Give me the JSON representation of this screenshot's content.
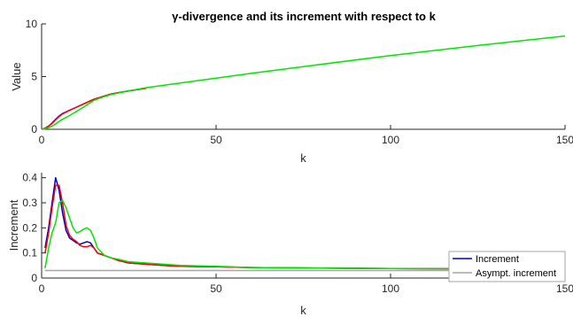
{
  "chart_data": [
    {
      "type": "line",
      "title": "γ-divergence and its increment with respect to k",
      "xlabel": "k",
      "ylabel": "Value",
      "xlim": [
        0,
        150
      ],
      "ylim": [
        0,
        10
      ],
      "xticks": [
        "0",
        "50",
        "100",
        "150"
      ],
      "yticks": [
        "0",
        "5",
        "10"
      ],
      "grid": false,
      "series": [
        {
          "color": "#0000cc",
          "x": [
            0,
            1,
            2,
            3,
            4,
            5,
            6,
            8,
            10,
            12,
            15,
            18,
            20,
            25,
            30
          ],
          "y": [
            0,
            0.1,
            0.3,
            0.6,
            0.95,
            1.25,
            1.5,
            1.8,
            2.1,
            2.4,
            2.85,
            3.15,
            3.35,
            3.65,
            3.9
          ]
        },
        {
          "color": "#ff0000",
          "x": [
            0,
            1,
            2,
            3,
            4,
            5,
            6,
            8,
            10,
            12,
            15,
            18,
            20,
            25,
            30
          ],
          "y": [
            0,
            0.1,
            0.3,
            0.55,
            0.9,
            1.2,
            1.45,
            1.8,
            2.1,
            2.4,
            2.85,
            3.15,
            3.35,
            3.65,
            3.9
          ]
        },
        {
          "color": "#00e600",
          "x": [
            0,
            1,
            2,
            3,
            4,
            5,
            6,
            8,
            10,
            12,
            15,
            18,
            20,
            25,
            30,
            40,
            50,
            60,
            75,
            100,
            125,
            150
          ],
          "y": [
            0,
            0.05,
            0.15,
            0.3,
            0.5,
            0.75,
            0.95,
            1.3,
            1.7,
            2.1,
            2.75,
            3.1,
            3.3,
            3.65,
            3.95,
            4.4,
            4.85,
            5.3,
            5.95,
            7.0,
            7.95,
            8.85
          ]
        }
      ]
    },
    {
      "type": "line",
      "title": "",
      "xlabel": "k",
      "ylabel": "Increment",
      "xlim": [
        0,
        150
      ],
      "ylim": [
        0,
        0.42
      ],
      "xticks": [
        "0",
        "50",
        "100",
        "150"
      ],
      "yticks": [
        "0",
        "0.1",
        "0.2",
        "0.3",
        "0.4"
      ],
      "grid": false,
      "legend": {
        "position": "bottom-right",
        "entries": [
          "Increment",
          "Asympt. increment"
        ]
      },
      "series": [
        {
          "name": "Increment",
          "color": "#0000cc",
          "x": [
            1,
            2,
            3,
            4,
            5,
            6,
            7,
            8,
            9,
            10,
            11,
            12,
            13,
            14,
            15,
            16,
            18,
            20,
            22,
            25,
            30,
            35,
            40,
            50,
            60,
            80,
            100,
            120,
            150
          ],
          "y": [
            0.12,
            0.2,
            0.3,
            0.4,
            0.35,
            0.26,
            0.19,
            0.16,
            0.15,
            0.14,
            0.135,
            0.14,
            0.145,
            0.14,
            0.12,
            0.1,
            0.09,
            0.08,
            0.07,
            0.06,
            0.055,
            0.05,
            0.047,
            0.045,
            0.042,
            0.04,
            0.038,
            0.037,
            0.035
          ]
        },
        {
          "name": "",
          "color": "#ff0000",
          "x": [
            1,
            2,
            3,
            4,
            5,
            6,
            7,
            8,
            9,
            10,
            11,
            12,
            13,
            14,
            15,
            16,
            18,
            20,
            22,
            25,
            30,
            35,
            40,
            50,
            60,
            80,
            100,
            120,
            150
          ],
          "y": [
            0.1,
            0.18,
            0.28,
            0.37,
            0.37,
            0.3,
            0.21,
            0.17,
            0.155,
            0.145,
            0.13,
            0.125,
            0.125,
            0.13,
            0.12,
            0.1,
            0.09,
            0.08,
            0.07,
            0.06,
            0.055,
            0.05,
            0.047,
            0.045,
            0.042,
            0.04,
            0.038,
            0.037,
            0.035
          ]
        },
        {
          "name": "",
          "color": "#00e600",
          "x": [
            1,
            2,
            3,
            4,
            5,
            6,
            7,
            8,
            9,
            10,
            11,
            12,
            13,
            14,
            15,
            16,
            18,
            20,
            22,
            25,
            30,
            35,
            40,
            50,
            60,
            80,
            100,
            120,
            150
          ],
          "y": [
            0.04,
            0.12,
            0.18,
            0.22,
            0.3,
            0.31,
            0.28,
            0.24,
            0.2,
            0.18,
            0.185,
            0.195,
            0.2,
            0.19,
            0.16,
            0.12,
            0.09,
            0.08,
            0.075,
            0.065,
            0.06,
            0.055,
            0.05,
            0.047,
            0.042,
            0.04,
            0.038,
            0.037,
            0.035
          ]
        },
        {
          "name": "Asympt. increment",
          "color": "#a6a6a6",
          "x": [
            1,
            150
          ],
          "y": [
            0.03,
            0.03
          ]
        }
      ]
    }
  ]
}
